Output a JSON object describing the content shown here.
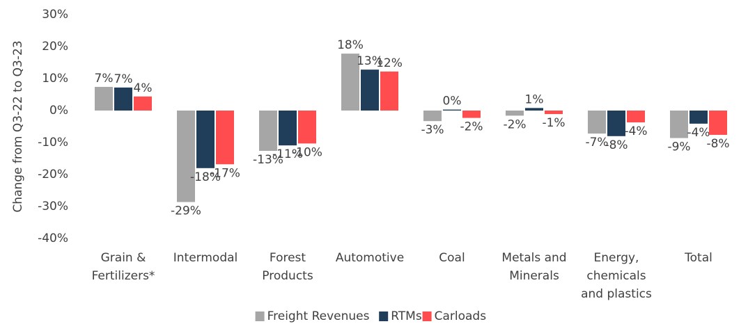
{
  "chart_data": {
    "type": "bar",
    "y_axis_label": "Change from Q3-22 to Q3-23",
    "categories": [
      [
        "Grain &",
        "Fertilizers*"
      ],
      [
        "Intermodal"
      ],
      [
        "Forest",
        "Products"
      ],
      [
        "Automotive"
      ],
      [
        "Coal"
      ],
      [
        "Metals and",
        "Minerals"
      ],
      [
        "Energy,",
        "chemicals",
        "and plastics"
      ],
      [
        "Total"
      ]
    ],
    "series": [
      {
        "name": "Freight Revenues",
        "color": "#a6a6a6",
        "values": [
          7.4,
          -28.6,
          -12.6,
          17.8,
          -3.3,
          -1.6,
          -7.2,
          -8.6
        ],
        "value_labels": [
          "7%",
          "-29%",
          "-13%",
          "18%",
          "-3%",
          "-2%",
          "-7%",
          "-9%"
        ]
      },
      {
        "name": "RTMs",
        "color": "#203d59",
        "values": [
          7.2,
          -18.0,
          -10.9,
          12.8,
          0.3,
          0.8,
          -8.0,
          -4.1
        ],
        "value_labels": [
          "7%",
          "-18%",
          "-11%",
          "13%",
          "0%",
          "1%",
          "-8%",
          "-4%"
        ]
      },
      {
        "name": "Carloads",
        "color": "#ff4d4f",
        "values": [
          4.4,
          -16.8,
          -10.3,
          12.2,
          -2.3,
          -1.1,
          -3.7,
          -7.6
        ],
        "value_labels": [
          "4%",
          "-17%",
          "-10%",
          "12%",
          "-2%",
          "-1%",
          "-4%",
          "-8%"
        ]
      }
    ],
    "ylim": [
      -40,
      30
    ],
    "yticks": [
      {
        "value": -40,
        "label": "-40%"
      },
      {
        "value": -30,
        "label": "-30%"
      },
      {
        "value": -20,
        "label": "-20%"
      },
      {
        "value": -10,
        "label": "-10%"
      },
      {
        "value": 0,
        "label": "0%"
      },
      {
        "value": 10,
        "label": "10%"
      },
      {
        "value": 20,
        "label": "20%"
      },
      {
        "value": 30,
        "label": "30%"
      }
    ],
    "legend": "bottom"
  }
}
